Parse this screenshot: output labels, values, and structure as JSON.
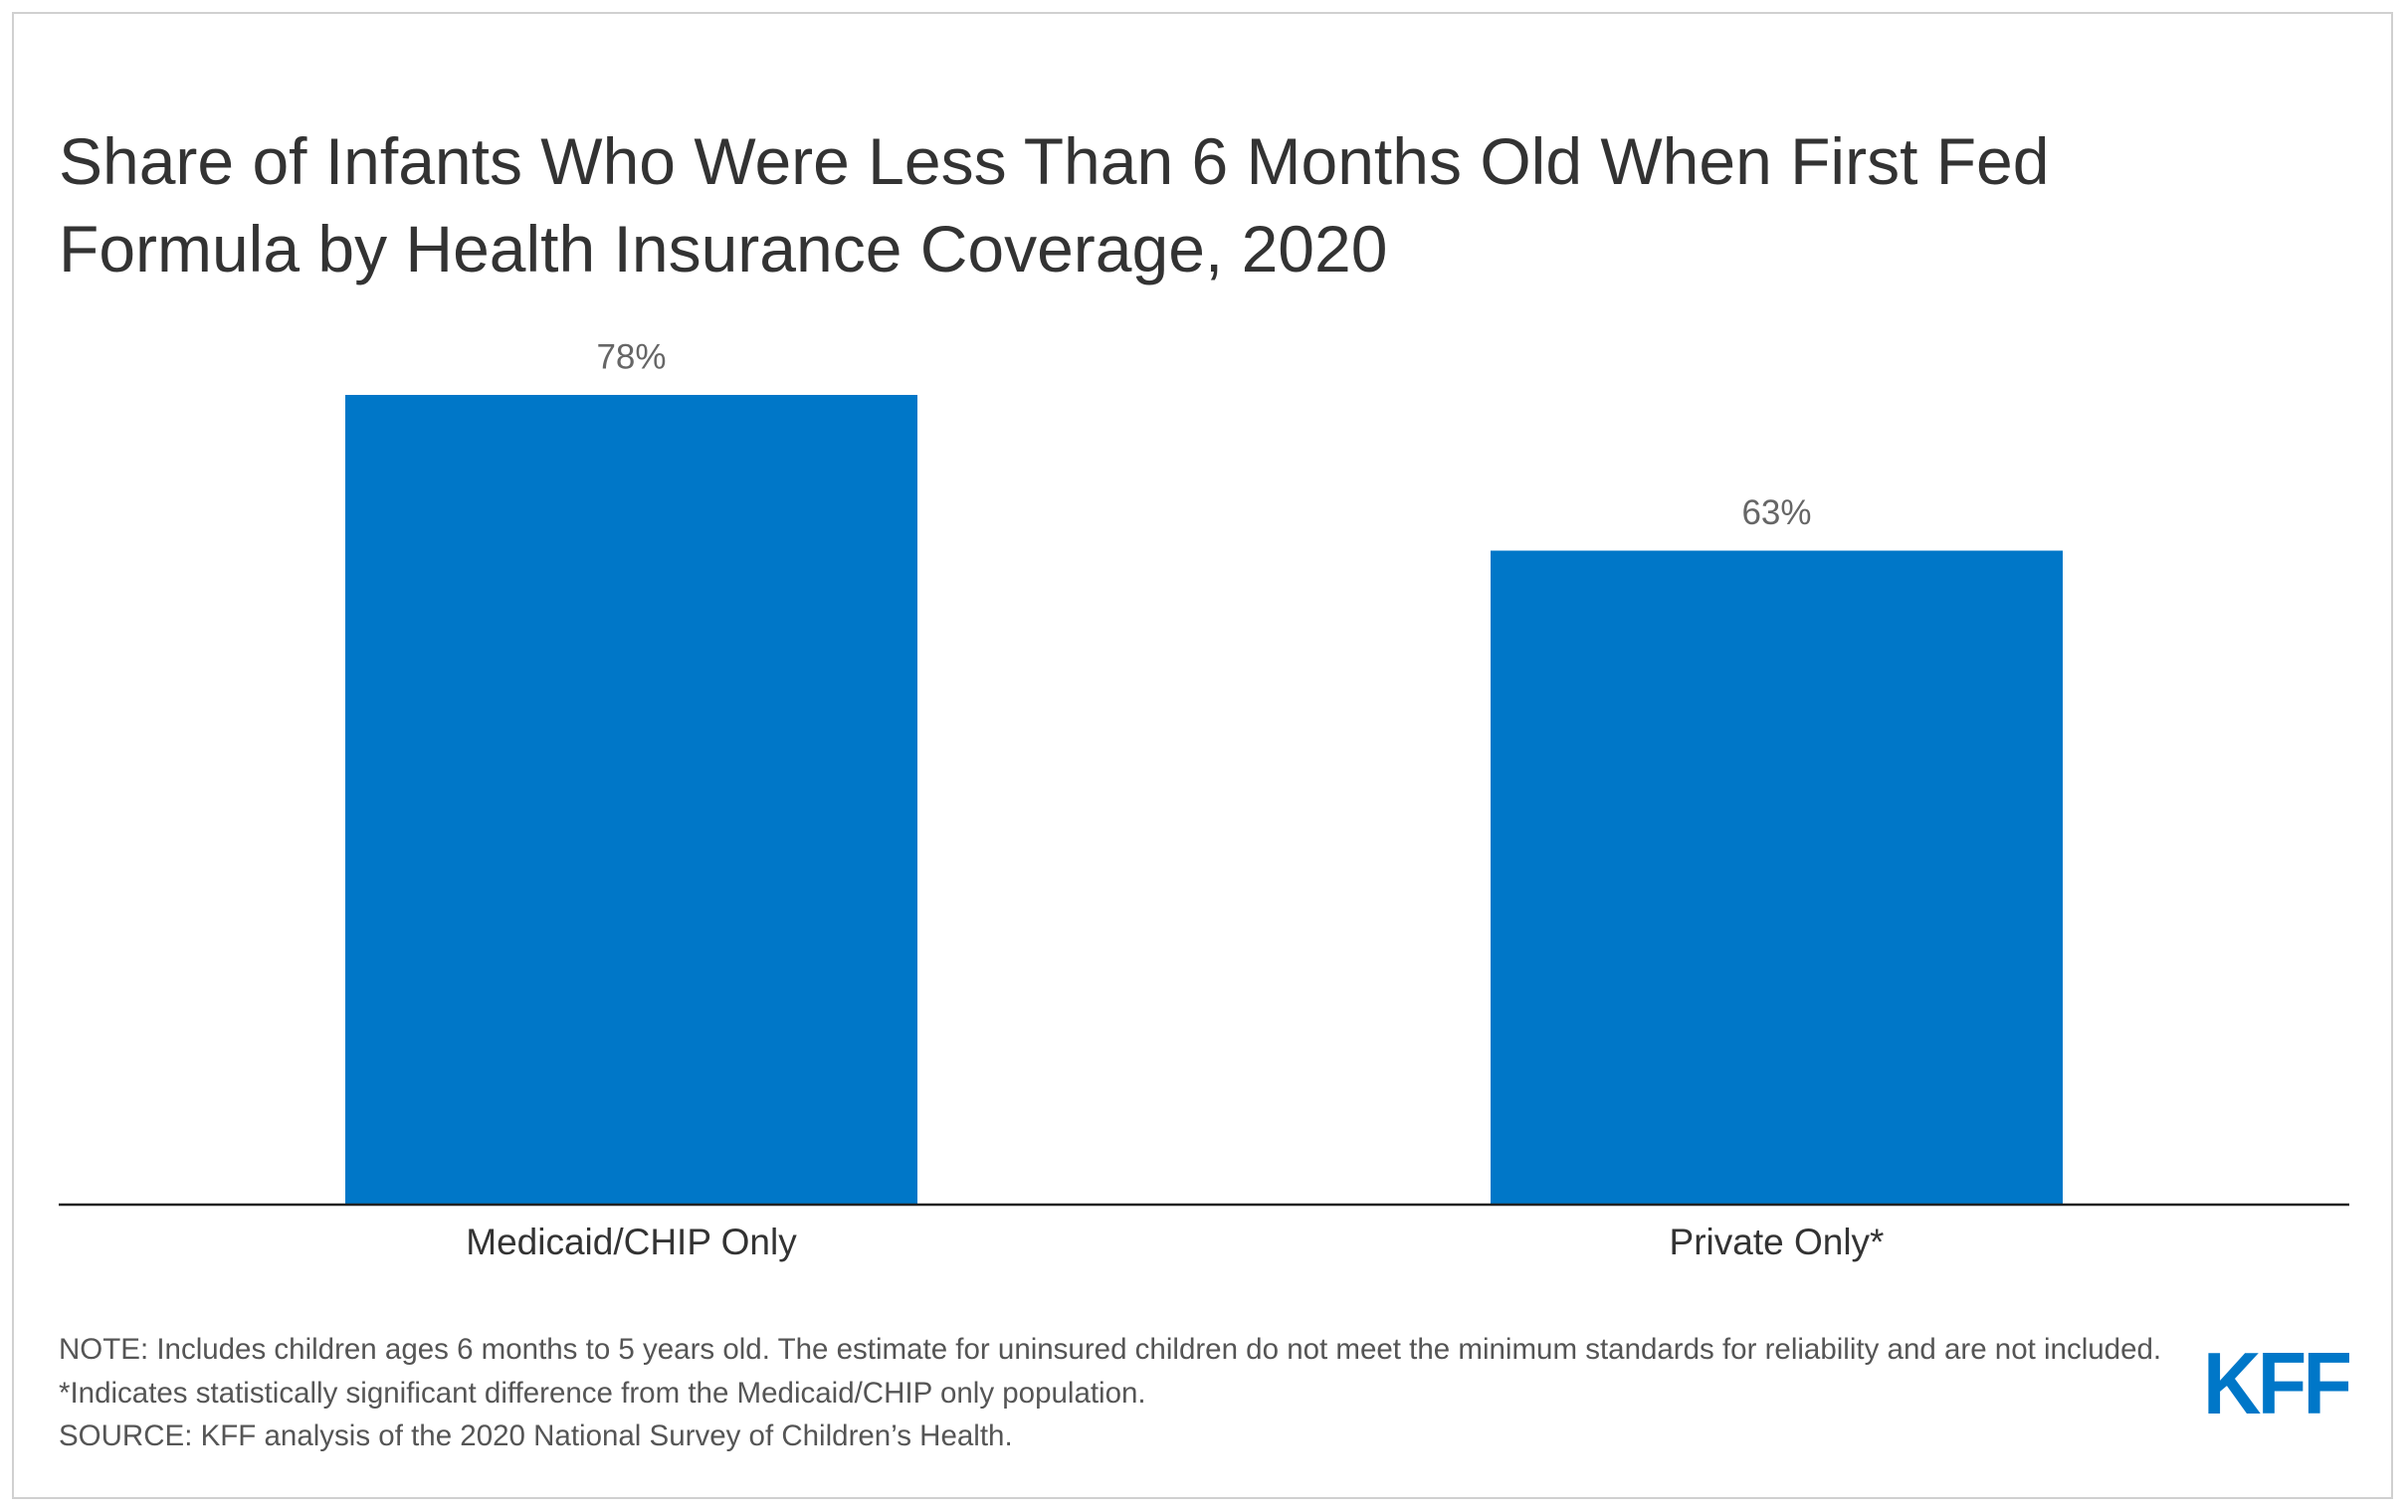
{
  "chart_data": {
    "type": "bar",
    "title": "Share of Infants Who Were Less Than 6 Months Old When First Fed Formula by Health Insurance Coverage, 2020",
    "categories": [
      "Medicaid/CHIP Only",
      "Private Only*"
    ],
    "values": [
      78,
      63
    ],
    "value_labels": [
      "78%",
      "63%"
    ],
    "color": "#0077c8",
    "note": "NOTE: Includes children ages 6 months to 5 years old. The estimate for uninsured children do not meet the minimum standards for reliability and are not included. *Indicates statistically significant difference from the Medicaid/CHIP only population.",
    "source": "SOURCE: KFF analysis of the 2020 National Survey of Children’s Health.",
    "logo": "KFF"
  }
}
